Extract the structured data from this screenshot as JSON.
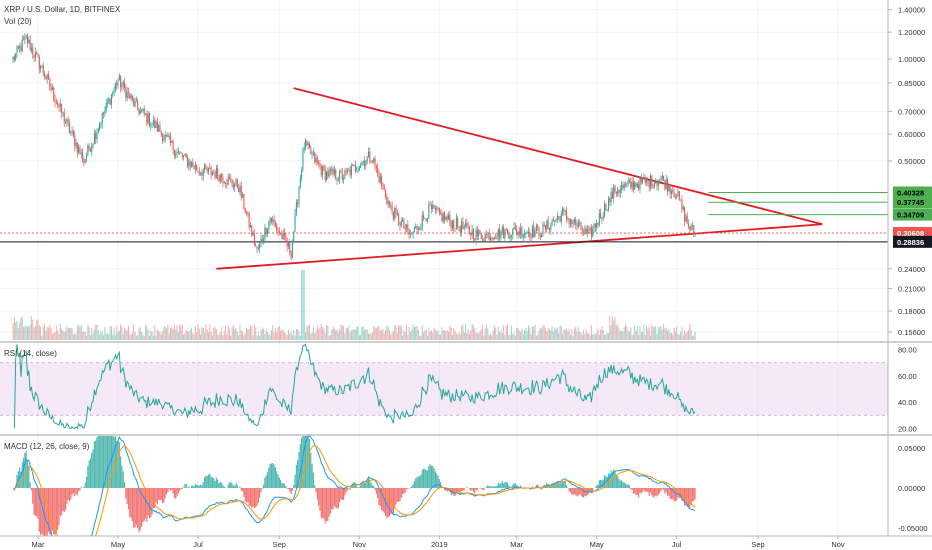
{
  "header": {
    "symbol_title": "XRP / U.S. Dollar, 1D, BITFINEX",
    "volume_label": "Vol (20)",
    "rsi_label": "RSI (14, close)",
    "macd_label": "MACD (12, 26, close, 9)"
  },
  "colors": {
    "up": "#26a69a",
    "down": "#ef5350",
    "triangle": "#e31b23",
    "levels": "#4caf50",
    "rsi_line": "#26a69a",
    "rsi_band": "#e1bee7",
    "macd_line": "#2196f3",
    "signal_line": "#ff9800",
    "current_tag": "#ef5350",
    "support_tag": "#131722"
  },
  "chart_data": [
    {
      "type": "candlestick",
      "title": "XRP / U.S. Dollar, 1D, BITFINEX",
      "y_scale": "log",
      "y_ticks": [
        "1.40000",
        "1.20000",
        "1.00000",
        "0.85000",
        "0.70000",
        "0.60000",
        "0.50000",
        "0.40328",
        "0.37745",
        "0.34709",
        "0.30608",
        "0.28836",
        "0.24000",
        "0.21000",
        "0.18000",
        "0.15600"
      ],
      "x_ticks": [
        "Mar",
        "May",
        "Jul",
        "Sep",
        "Nov",
        "2019",
        "Mar",
        "May",
        "Jul",
        "Sep",
        "Nov"
      ],
      "close_path": [
        [
          "2018-02-10",
          1.0
        ],
        [
          "2018-02-20",
          1.15
        ],
        [
          "2018-03-05",
          0.92
        ],
        [
          "2018-03-20",
          0.68
        ],
        [
          "2018-04-05",
          0.5
        ],
        [
          "2018-04-15",
          0.62
        ],
        [
          "2018-05-01",
          0.87
        ],
        [
          "2018-05-15",
          0.72
        ],
        [
          "2018-06-01",
          0.62
        ],
        [
          "2018-06-15",
          0.53
        ],
        [
          "2018-07-01",
          0.47
        ],
        [
          "2018-07-15",
          0.46
        ],
        [
          "2018-08-01",
          0.42
        ],
        [
          "2018-08-15",
          0.27
        ],
        [
          "2018-08-25",
          0.34
        ],
        [
          "2018-09-10",
          0.27
        ],
        [
          "2018-09-20",
          0.56
        ],
        [
          "2018-10-05",
          0.46
        ],
        [
          "2018-10-20",
          0.45
        ],
        [
          "2018-11-10",
          0.52
        ],
        [
          "2018-11-25",
          0.36
        ],
        [
          "2018-12-10",
          0.3
        ],
        [
          "2018-12-25",
          0.36
        ],
        [
          "2019-01-10",
          0.33
        ],
        [
          "2019-02-01",
          0.3
        ],
        [
          "2019-02-25",
          0.31
        ],
        [
          "2019-03-20",
          0.31
        ],
        [
          "2019-04-05",
          0.35
        ],
        [
          "2019-04-25",
          0.3
        ],
        [
          "2019-05-15",
          0.41
        ],
        [
          "2019-06-01",
          0.43
        ],
        [
          "2019-06-20",
          0.44
        ],
        [
          "2019-07-01",
          0.4
        ],
        [
          "2019-07-10",
          0.32
        ],
        [
          "2019-07-15",
          0.30608
        ]
      ],
      "annotations": {
        "triangle_upper": [
          [
            "2018-09-12",
            0.82
          ],
          [
            "2019-10-20",
            0.325
          ]
        ],
        "triangle_lower": [
          [
            "2018-07-15",
            0.24
          ],
          [
            "2019-10-20",
            0.325
          ]
        ],
        "levels": [
          0.40328,
          0.37745,
          0.34709
        ],
        "current_price": 0.30608,
        "support": 0.28836
      }
    },
    {
      "type": "bar",
      "title": "Vol (20)",
      "note": "volume histogram, unlabeled values"
    },
    {
      "type": "line",
      "title": "RSI (14, close)",
      "y_ticks": [
        "80.00",
        "60.00",
        "40.00",
        "20.00"
      ],
      "band": [
        30,
        70
      ],
      "ylim": [
        15,
        85
      ]
    },
    {
      "type": "line",
      "title": "MACD (12, 26, close, 9)",
      "y_ticks": [
        "0.05000",
        "0.00000",
        "-0.05000"
      ],
      "series": [
        {
          "name": "MACD"
        },
        {
          "name": "Signal"
        }
      ]
    }
  ]
}
